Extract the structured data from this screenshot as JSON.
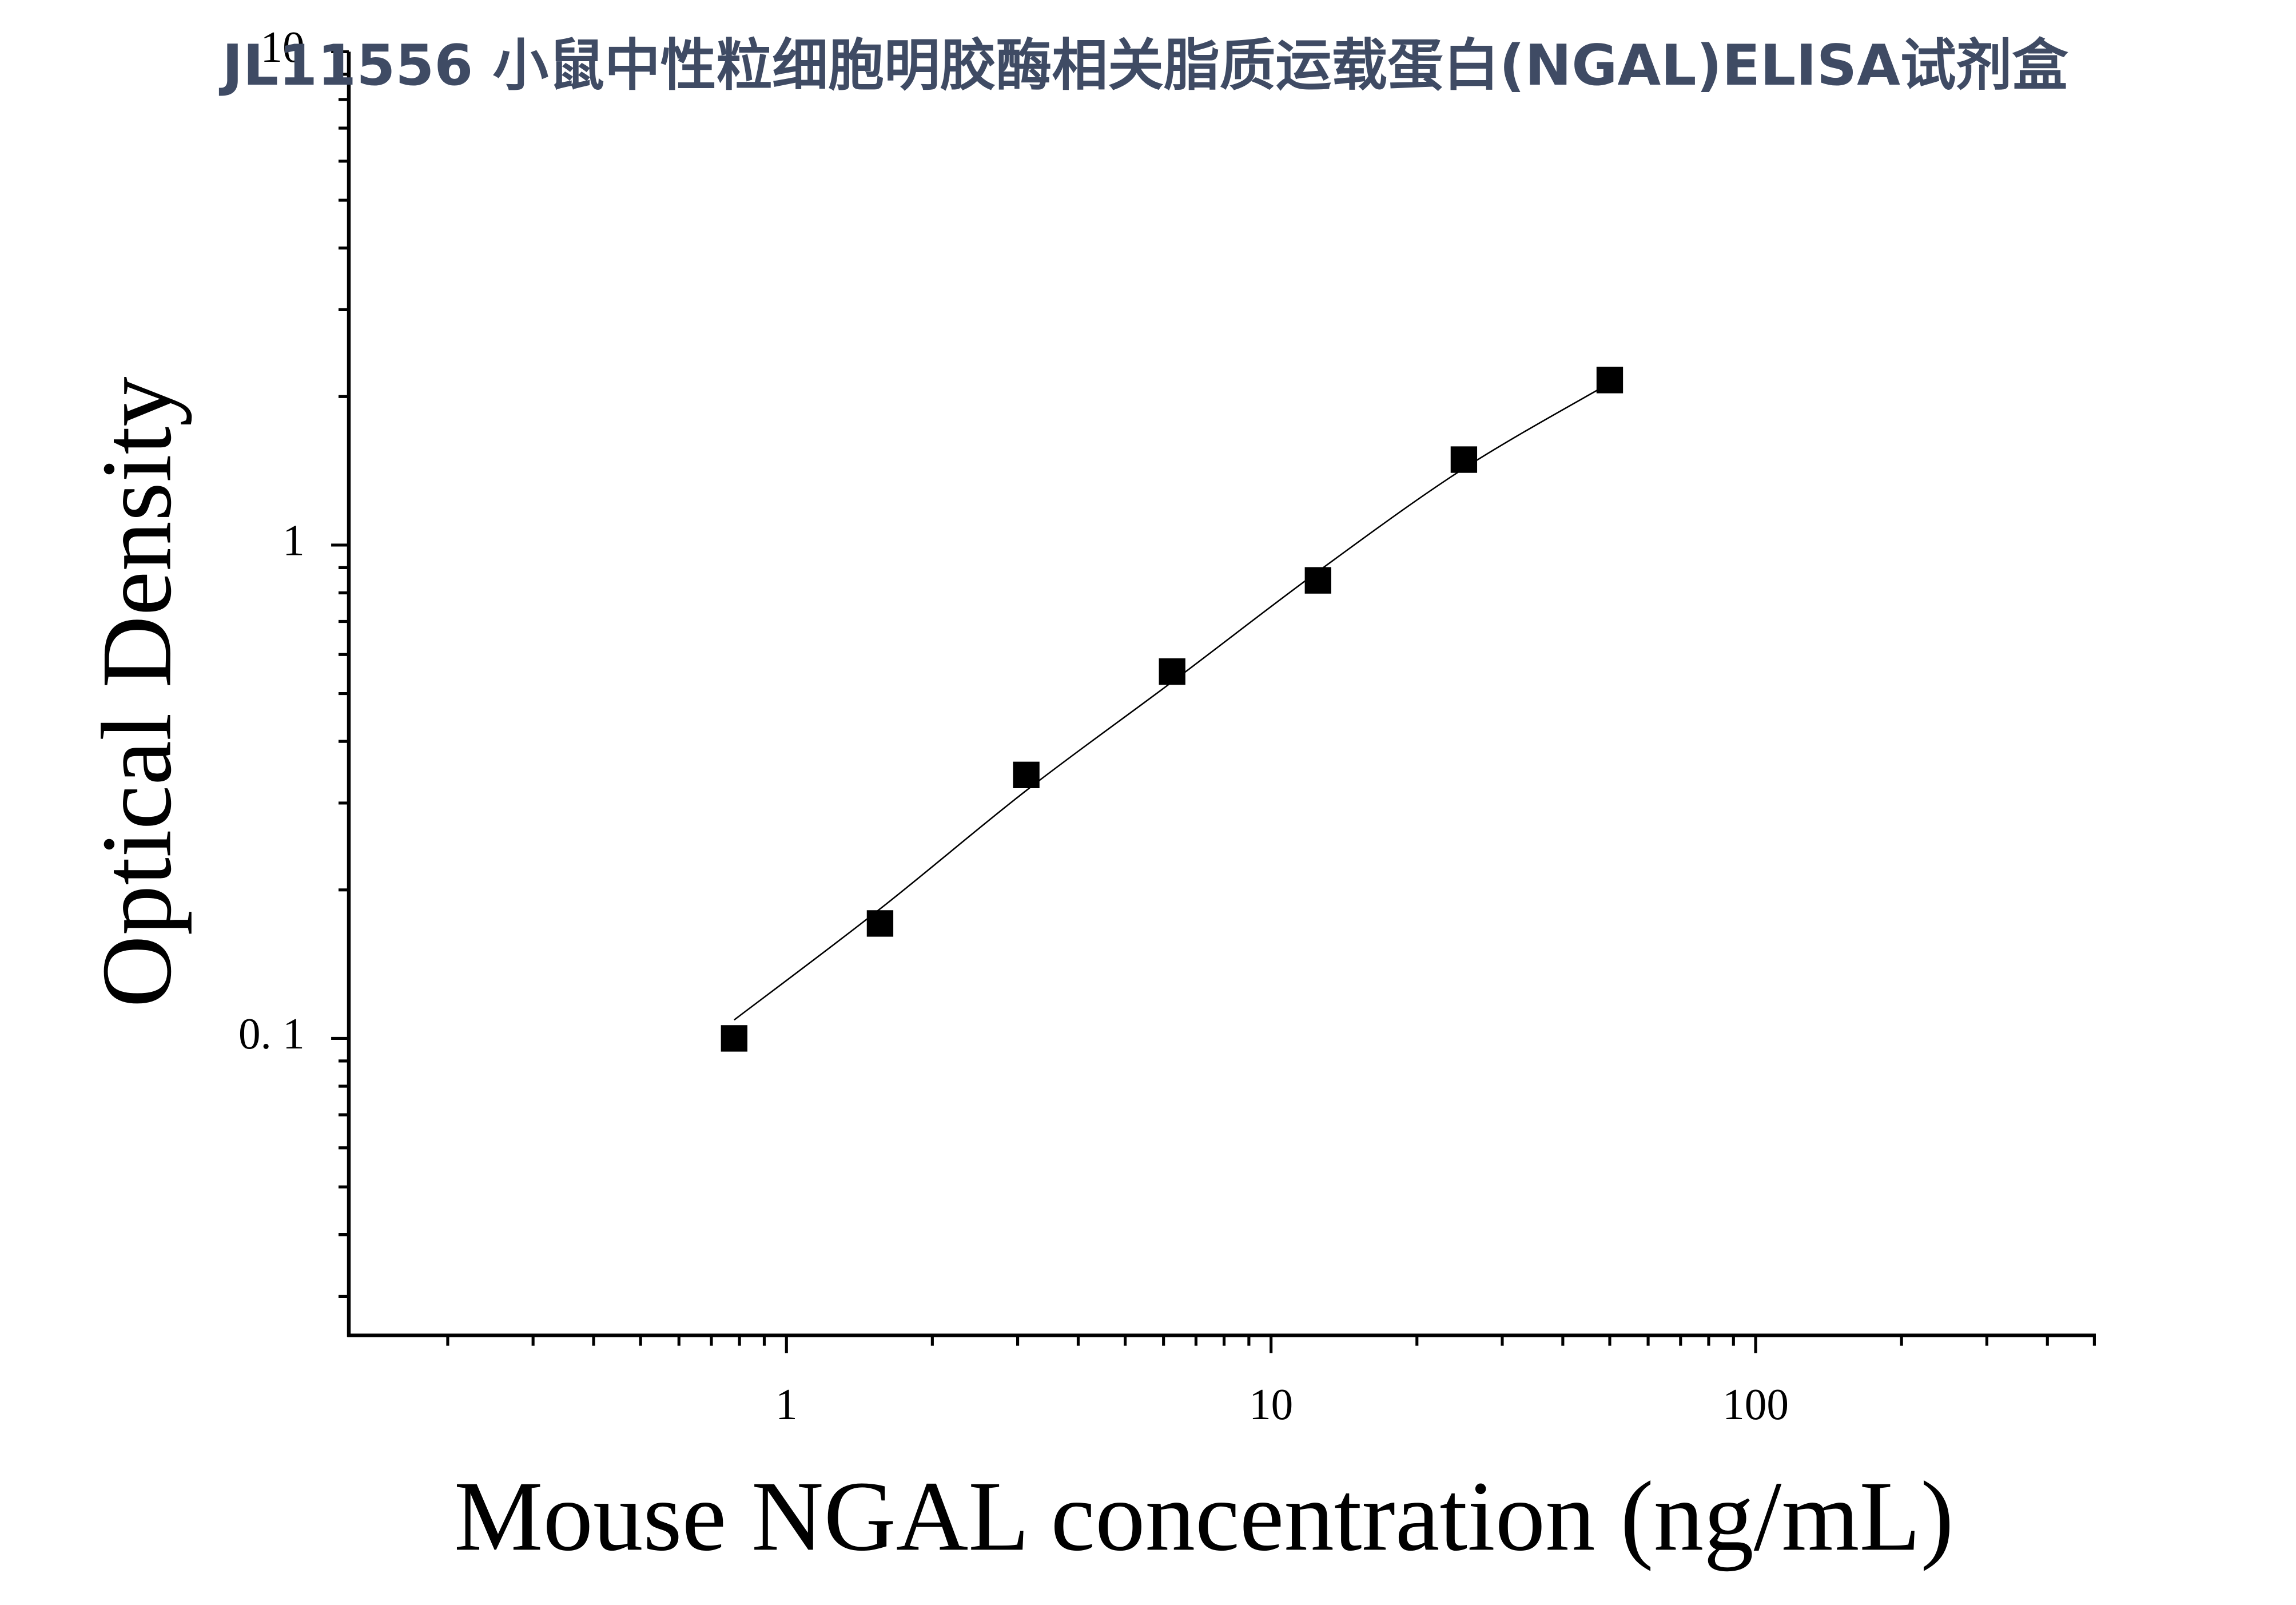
{
  "chart_data": {
    "type": "scatter",
    "title": "JL11556 小鼠中性粒细胞明胶酶相关脂质运载蛋白(NGAL)ELISA试剂盒",
    "x_label": "Mouse NGAL concentration (ng/mL)",
    "y_label": "Optical Density",
    "x": [
      0.78,
      1.56,
      3.125,
      6.25,
      12.5,
      25,
      50
    ],
    "values": [
      0.1,
      0.171,
      0.342,
      0.554,
      0.848,
      1.49,
      2.16
    ],
    "color": "#000000",
    "fit_x": [
      0.78,
      1.56,
      3.125,
      6.25,
      12.5,
      25,
      50
    ],
    "fit_values": [
      0.109,
      0.183,
      0.318,
      0.528,
      0.884,
      1.43,
      2.13
    ],
    "xscale": "log",
    "yscale": "log",
    "xlim": [
      0.125,
      500
    ],
    "ylim": [
      0.025,
      10
    ],
    "xticks": [
      1,
      10,
      100
    ],
    "yticks": [
      {
        "value": 0.1,
        "label": "0. 1"
      },
      1,
      10
    ],
    "xminor_ticks": [
      0.2,
      0.3,
      0.4,
      0.5,
      0.6,
      0.7,
      0.8,
      0.9,
      2,
      3,
      4,
      5,
      6,
      7,
      8,
      9,
      20,
      30,
      40,
      50,
      60,
      70,
      80,
      90,
      200,
      300,
      400,
      500
    ],
    "yminor_ticks": [
      0.03,
      0.04,
      0.05,
      0.06,
      0.07,
      0.08,
      0.09,
      0.2,
      0.3,
      0.4,
      0.5,
      0.6,
      0.7,
      0.8,
      0.9,
      2,
      3,
      4,
      5,
      6,
      7,
      8,
      9
    ],
    "grid": false
  }
}
